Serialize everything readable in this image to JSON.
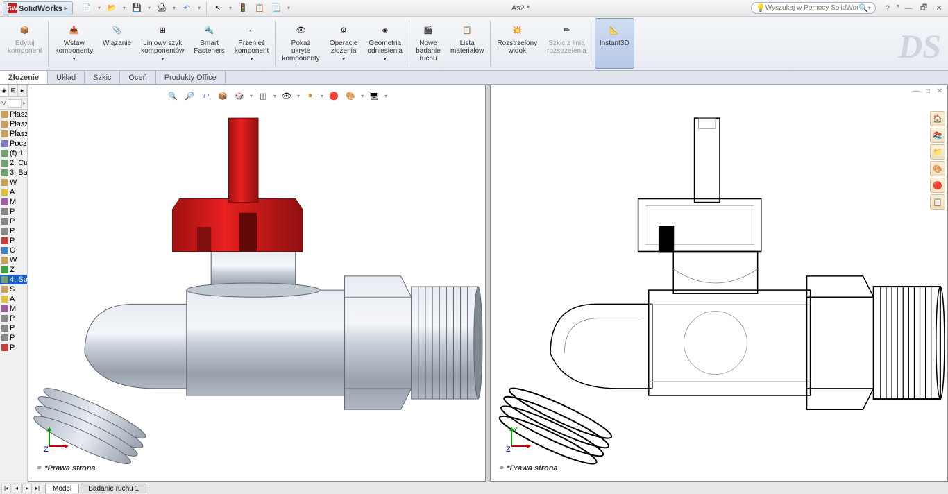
{
  "app": {
    "name": "SolidWorks",
    "title": "As2 *"
  },
  "search": {
    "placeholder": "Wyszukaj w Pomocy SolidWorks"
  },
  "ribbon": [
    {
      "label": "Edytuj\nkomponent",
      "icon": "📦",
      "dim": true
    },
    {
      "label": "Wstaw\nkomponenty",
      "icon": "📥",
      "dropdown": true
    },
    {
      "label": "Wiązanie",
      "icon": "📎"
    },
    {
      "label": "Liniowy szyk\nkomponentów",
      "icon": "⊞",
      "dropdown": true
    },
    {
      "label": "Smart\nFasteners",
      "icon": "🔩"
    },
    {
      "label": "Przenieś\nkomponent",
      "icon": "↔",
      "dropdown": true
    },
    {
      "label": "Pokaż\nukryte\nkomponenty",
      "icon": "👁"
    },
    {
      "label": "Operacje\nzłożenia",
      "icon": "⚙",
      "dropdown": true
    },
    {
      "label": "Geometria\nodniesienia",
      "icon": "◈",
      "dropdown": true
    },
    {
      "label": "Nowe\nbadanie\nruchu",
      "icon": "🎬"
    },
    {
      "label": "Lista\nmateriałów",
      "icon": "📋"
    },
    {
      "label": "Rozstrzelony\nwidok",
      "icon": "💥"
    },
    {
      "label": "Szkic z linią\nrozstrzelenia",
      "icon": "✏",
      "dim": true
    },
    {
      "label": "Instant3D",
      "icon": "📐",
      "active": true
    }
  ],
  "tabs": [
    "Złożenie",
    "Układ",
    "Szkic",
    "Oceń",
    "Produkty Office"
  ],
  "activeTab": 0,
  "featureTree": [
    {
      "t": "Płasz",
      "c": "#c8a060"
    },
    {
      "t": "Płasz",
      "c": "#c8a060"
    },
    {
      "t": "Płasz",
      "c": "#c8a060"
    },
    {
      "t": "Pocz",
      "c": "#8080c0"
    },
    {
      "t": "(f) 1.",
      "c": "#70a070"
    },
    {
      "t": "2. Cu",
      "c": "#70a070"
    },
    {
      "t": "3. Bal",
      "c": "#70a070"
    },
    {
      "t": "W",
      "c": "#c8a060"
    },
    {
      "t": "A",
      "c": "#e0c040"
    },
    {
      "t": "M",
      "c": "#a060a0"
    },
    {
      "t": "P",
      "c": "#888"
    },
    {
      "t": "P",
      "c": "#888"
    },
    {
      "t": "P",
      "c": "#888"
    },
    {
      "t": "P",
      "c": "#c04040"
    },
    {
      "t": "O",
      "c": "#4080c0"
    },
    {
      "t": "W",
      "c": "#c8a060"
    },
    {
      "t": "Z",
      "c": "#40a040"
    },
    {
      "t": "4. So",
      "c": "#70a070",
      "sel": true
    },
    {
      "t": "S",
      "c": "#c8a060"
    },
    {
      "t": "A",
      "c": "#e0c040"
    },
    {
      "t": "M",
      "c": "#a060a0"
    },
    {
      "t": "P",
      "c": "#888"
    },
    {
      "t": "P",
      "c": "#888"
    },
    {
      "t": "P",
      "c": "#888"
    },
    {
      "t": "P",
      "c": "#c04040"
    }
  ],
  "viewLabel": "*Prawa strona",
  "bottomTabs": [
    "Model",
    "Badanie ruchu 1"
  ],
  "colors": {
    "handleRed": "#c81818",
    "metalLight": "#d8dce4",
    "metalMid": "#a8b0bc",
    "metalDark": "#787f8a"
  }
}
